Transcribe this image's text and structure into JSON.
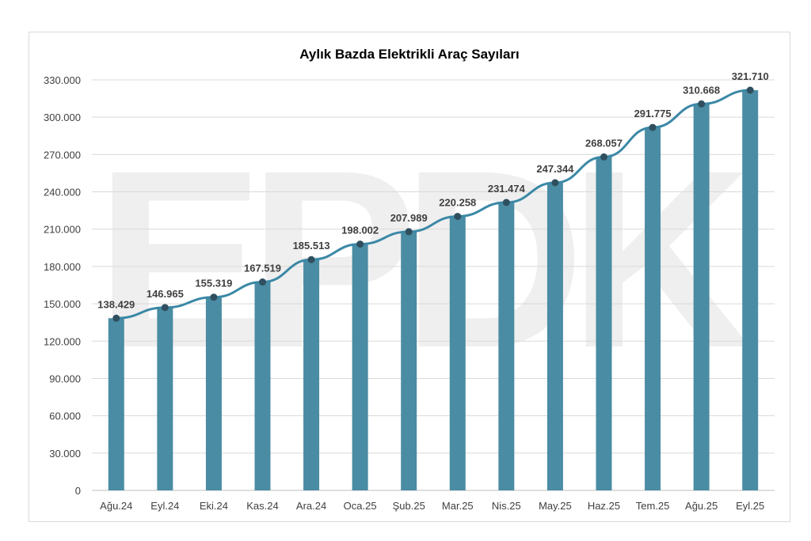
{
  "chart_data": {
    "type": "bar",
    "title": "Aylık Bazda Elektrikli Araç Sayıları",
    "categories": [
      "Ağu.24",
      "Eyl.24",
      "Eki.24",
      "Kas.24",
      "Ara.24",
      "Oca.25",
      "Şub.25",
      "Mar.25",
      "Nis.25",
      "May.25",
      "Haz.25",
      "Tem.25",
      "Ağu.25",
      "Eyl.25"
    ],
    "values": [
      138429,
      146965,
      155319,
      167519,
      185513,
      198002,
      207989,
      220258,
      231474,
      247344,
      268057,
      291775,
      310668,
      321710
    ],
    "value_labels": [
      "138.429",
      "146.965",
      "155.319",
      "167.519",
      "185.513",
      "198.002",
      "207.989",
      "220.258",
      "231.474",
      "247.344",
      "268.057",
      "291.775",
      "310.668",
      "321.710"
    ],
    "overlay_line": true,
    "ylim": [
      0,
      330000
    ],
    "yticks": [
      0,
      30000,
      60000,
      90000,
      120000,
      150000,
      180000,
      210000,
      240000,
      270000,
      300000,
      330000
    ],
    "ytick_labels": [
      "0",
      "30.000",
      "60.000",
      "90.000",
      "120.000",
      "150.000",
      "180.000",
      "210.000",
      "240.000",
      "270.000",
      "300.000",
      "330.000"
    ],
    "grid": true,
    "watermark": "EPDK",
    "colors": {
      "bar": "#4a8ca3",
      "line": "#3b88a6",
      "marker": "#2f4f5f",
      "grid": "#d9d9d9",
      "watermark": "#e9e9e9"
    }
  }
}
